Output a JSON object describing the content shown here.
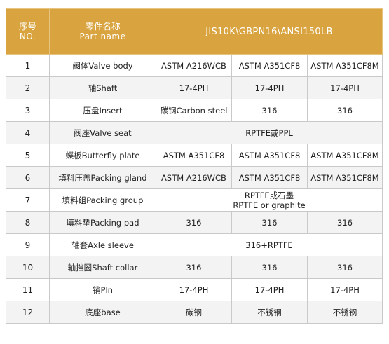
{
  "header": {
    "no_zh": "序号",
    "no_en": "NO.",
    "part_zh": "零件名称",
    "part_en": "Part name",
    "standard": "JIS10K\\GBPN16\\ANSI150LB"
  },
  "rows": [
    {
      "no": "1",
      "part": "阀体Valve body",
      "c1": "ASTM A216WCB",
      "c2": "ASTM A351CF8",
      "c3": "ASTM A351CF8M"
    },
    {
      "no": "2",
      "part": "轴Shaft",
      "c1": "17-4PH",
      "c2": "17-4PH",
      "c3": "17-4PH"
    },
    {
      "no": "3",
      "part": "压盘Insert",
      "c1": "碳钢Carbon steel",
      "c2": "316",
      "c3": "316"
    },
    {
      "no": "4",
      "part": "阀座Valve seat",
      "span": "RPTFE或PPL"
    },
    {
      "no": "5",
      "part": "蝶板Butterfly plate",
      "c1": "ASTM A351CF8",
      "c2": "ASTM A351CF8",
      "c3": "ASTM A351CF8M"
    },
    {
      "no": "6",
      "part": "填料压盖Packing gland",
      "c1": "ASTM A216WCB",
      "c2": "ASTM A351CF8",
      "c3": "ASTM A351CF8M"
    },
    {
      "no": "7",
      "part": "填料组Packing group",
      "span_line1": "RPTFE或石墨",
      "span_line2": "RPTFE or graphlte"
    },
    {
      "no": "8",
      "part": "填料垫Packing pad",
      "c1": "316",
      "c2": "316",
      "c3": "316"
    },
    {
      "no": "9",
      "part": "轴套Axle sleeve",
      "span": "316+RPTFE"
    },
    {
      "no": "10",
      "part": "轴挡圈Shaft collar",
      "c1": "316",
      "c2": "316",
      "c3": "316"
    },
    {
      "no": "11",
      "part": "销Pln",
      "c1": "17-4PH",
      "c2": "17-4PH",
      "c3": "17-4PH"
    },
    {
      "no": "12",
      "part": "底座base",
      "c1": "碳钢",
      "c2": "不锈钢",
      "c3": "不锈钢"
    }
  ]
}
